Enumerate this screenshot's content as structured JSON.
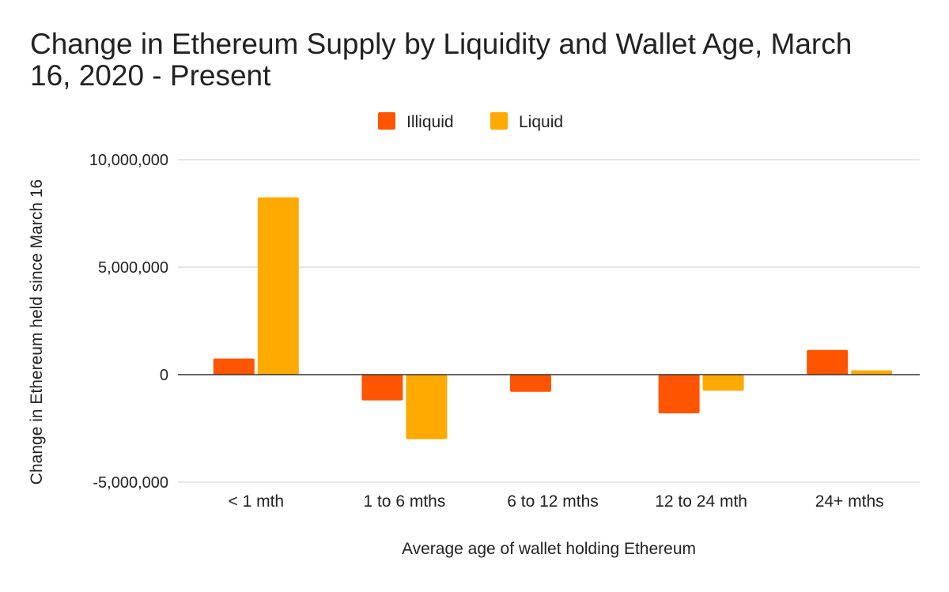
{
  "chart_data": {
    "type": "bar",
    "title_lines": [
      "Change in Ethereum Supply by Liquidity and Wallet Age, March",
      "16, 2020 - Present"
    ],
    "xlabel": "Average age of wallet holding Ethereum",
    "ylabel": "Change in Ethereum held since March 16",
    "categories": [
      "< 1 mth",
      "1 to 6 mths",
      "6 to 12 mths",
      "12 to 24 mth",
      "24+ mths"
    ],
    "series": [
      {
        "name": "Illiquid",
        "color": "#FF5500",
        "values": [
          750000,
          -1200000,
          -800000,
          -1800000,
          1150000
        ]
      },
      {
        "name": "Liquid",
        "color": "#FFAA00",
        "values": [
          8250000,
          -3000000,
          0,
          -750000,
          200000
        ]
      }
    ],
    "ylim": [
      -5000000,
      10000000
    ],
    "yticks": [
      10000000,
      5000000,
      0,
      -5000000
    ],
    "ytick_labels": [
      "10,000,000",
      "5,000,000",
      "0",
      "-5,000,000"
    ],
    "grid": true,
    "legend_position": "top-center"
  }
}
